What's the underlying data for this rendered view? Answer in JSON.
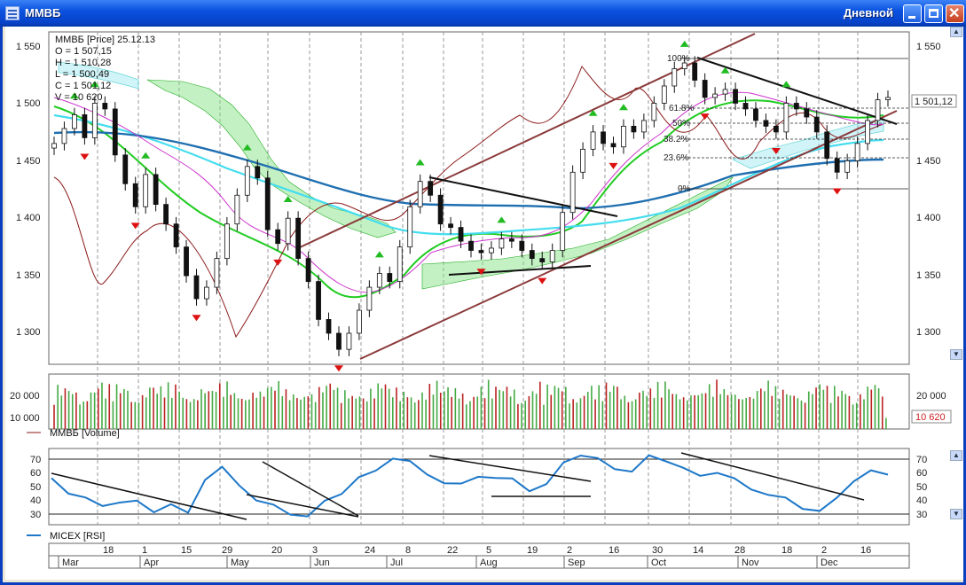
{
  "window": {
    "title": "ММВБ",
    "period": "Дневной",
    "icon": "chart-window-icon",
    "controls": [
      "minimize-icon",
      "maximize-icon",
      "close-icon"
    ]
  },
  "price_panel": {
    "info": {
      "header": "ММВБ [Price] 25.12.13",
      "open": "O = 1 507,15",
      "high": "H = 1 510,28",
      "low": "L = 1 500,49",
      "close": "C = 1 501,12",
      "volume": "V = 10 620"
    },
    "last_price_label": "1 501,12",
    "fib_levels": [
      "100%",
      "61.8%",
      "50%",
      "38.2%",
      "23.6%",
      "0%"
    ]
  },
  "volume_panel": {
    "legend": "ММВБ [Volume]",
    "last_volume_label": "10 620"
  },
  "rsi_panel": {
    "legend": "MICEX [RSI]"
  },
  "time_axis": {
    "day_labels": [
      "18",
      "1",
      "15",
      "29",
      "20",
      "3",
      "24",
      "8",
      "22",
      "5",
      "19",
      "2",
      "16",
      "30",
      "14",
      "28",
      "18",
      "2",
      "16"
    ],
    "month_labels": [
      "Mar",
      "Apr",
      "May",
      "Jun",
      "Jul",
      "Aug",
      "Sep",
      "Oct",
      "Nov",
      "Dec"
    ]
  },
  "colors": {
    "titlebar": "#0a52e0",
    "bull_arrow": "#22bb22",
    "bear_arrow": "#dd1111",
    "channel": "#8b3a3a",
    "rsi": "#1e78c8",
    "ma_fast": "#22cc22",
    "ma_medium": "#44ddee",
    "ma_slow": "#1f6fb0",
    "volume_up": "#44aa44",
    "volume_down": "#bb2222"
  },
  "chart_data": [
    {
      "type": "line",
      "series": [
        {
          "values": [
            1465,
            1478,
            1490,
            1470,
            1500,
            1495,
            1455,
            1430,
            1410,
            1438,
            1412,
            1395,
            1375,
            1350,
            1330,
            1340,
            1365,
            1395,
            1420,
            1445,
            1435,
            1390,
            1378,
            1400,
            1365,
            1345,
            1312,
            1300,
            1286,
            1300,
            1320,
            1340,
            1352,
            1345,
            1375,
            1410,
            1432,
            1420,
            1395,
            1392,
            1380,
            1372,
            1370,
            1374,
            1382,
            1380,
            1372,
            1365,
            1362,
            1372,
            1405,
            1440,
            1460,
            1475,
            1465,
            1462,
            1480,
            1475,
            1485,
            1500,
            1515,
            1530,
            1535,
            1520,
            1505,
            1508,
            1512,
            1500,
            1495,
            1485,
            1480,
            1475,
            1500,
            1495,
            1488,
            1475,
            1452,
            1440,
            1450,
            1465,
            1485,
            1503,
            1505
          ]
        }
      ],
      "ylim": [
        1273,
        1562
      ]
    },
    {
      "type": "bar",
      "ylim": [
        0,
        25000
      ]
    },
    {
      "type": "line",
      "series": [
        {
          "values": [
            55,
            45,
            40,
            36,
            38,
            38,
            32,
            36,
            30,
            55,
            62,
            50,
            40,
            35,
            30,
            28,
            38,
            45,
            55,
            60,
            70,
            66,
            58,
            52,
            50,
            57,
            55,
            54,
            47,
            50,
            66,
            72,
            68,
            62,
            60,
            70,
            68,
            62,
            56,
            60,
            54,
            47,
            44,
            40,
            34,
            32,
            40,
            54,
            60,
            57
          ]
        }
      ],
      "ylim": [
        22,
        76
      ]
    }
  ]
}
